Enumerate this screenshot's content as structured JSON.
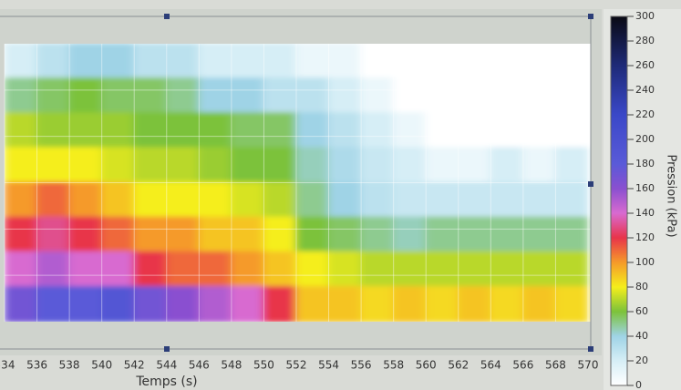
{
  "chart_data": {
    "type": "heatmap",
    "xlabel": "Temps (s)",
    "colorbar_label": "Pression (kPa)",
    "xbins": [
      534,
      536,
      538,
      540,
      542,
      544,
      546,
      548,
      550,
      552,
      554,
      556,
      558,
      560,
      562,
      564,
      566,
      568,
      570
    ],
    "z": [
      [
        20,
        30,
        40,
        40,
        30,
        30,
        20,
        20,
        20,
        10,
        10,
        0,
        0,
        0,
        0,
        0,
        0,
        0
      ],
      [
        50,
        55,
        60,
        55,
        55,
        50,
        40,
        40,
        30,
        30,
        20,
        10,
        0,
        0,
        0,
        0,
        0,
        0
      ],
      [
        70,
        65,
        65,
        65,
        60,
        60,
        60,
        55,
        55,
        40,
        30,
        20,
        10,
        0,
        0,
        0,
        0,
        0
      ],
      [
        80,
        80,
        80,
        75,
        70,
        70,
        65,
        60,
        60,
        45,
        35,
        25,
        20,
        10,
        10,
        20,
        10,
        20
      ],
      [
        100,
        110,
        100,
        90,
        80,
        80,
        80,
        75,
        70,
        50,
        40,
        30,
        25,
        25,
        25,
        25,
        25,
        25
      ],
      [
        120,
        130,
        120,
        110,
        100,
        100,
        90,
        90,
        80,
        60,
        55,
        50,
        45,
        50,
        50,
        50,
        50,
        50
      ],
      [
        140,
        150,
        140,
        140,
        120,
        110,
        110,
        100,
        90,
        80,
        75,
        70,
        70,
        70,
        70,
        70,
        70,
        70
      ],
      [
        170,
        180,
        180,
        190,
        170,
        160,
        150,
        140,
        120,
        90,
        90,
        85,
        90,
        85,
        90,
        85,
        90,
        85
      ]
    ],
    "xlim": [
      534,
      570
    ],
    "xticks": [
      534,
      536,
      538,
      540,
      542,
      544,
      546,
      548,
      550,
      552,
      554,
      556,
      558,
      560,
      562,
      564,
      566,
      568,
      570
    ],
    "clim": [
      0,
      300
    ],
    "cticks": [
      0,
      20,
      40,
      60,
      80,
      100,
      120,
      140,
      160,
      180,
      200,
      220,
      240,
      260,
      280,
      300
    ],
    "colorscale": [
      [
        0,
        "#ffffff"
      ],
      [
        20,
        "#d6eef6"
      ],
      [
        40,
        "#9fd3e6"
      ],
      [
        60,
        "#7cc23a"
      ],
      [
        80,
        "#f5ee1c"
      ],
      [
        100,
        "#f59a2a"
      ],
      [
        120,
        "#e8344a"
      ],
      [
        140,
        "#d86ad0"
      ],
      [
        160,
        "#8a4fd0"
      ],
      [
        180,
        "#5a5ad8"
      ],
      [
        220,
        "#3a48c8"
      ],
      [
        260,
        "#1e2a78"
      ],
      [
        300,
        "#0a0a14"
      ]
    ],
    "grid": true
  }
}
